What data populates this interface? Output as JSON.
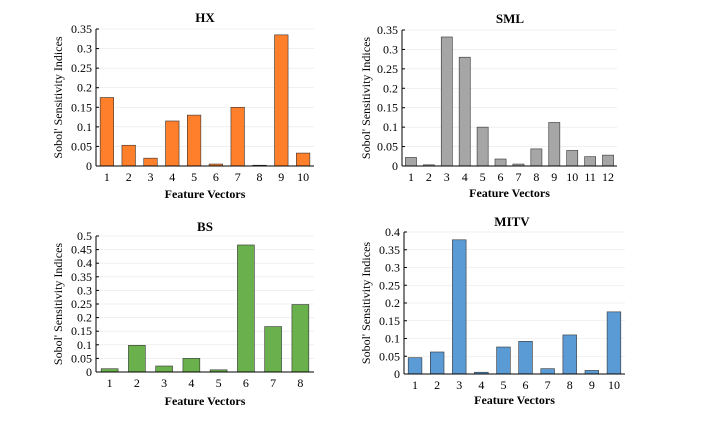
{
  "chart_data": [
    {
      "type": "bar",
      "title": "HX",
      "xlabel": "Feature Vectors",
      "ylabel": "Sobol' Sensitivity Indices",
      "color": "#ff7f2a",
      "categories": [
        "1",
        "2",
        "3",
        "4",
        "5",
        "6",
        "7",
        "8",
        "9",
        "10"
      ],
      "values": [
        0.175,
        0.053,
        0.02,
        0.115,
        0.13,
        0.005,
        0.15,
        0.002,
        0.335,
        0.033
      ],
      "ylim": [
        0,
        0.35
      ],
      "yticks": [
        0,
        0.05,
        0.1,
        0.15,
        0.2,
        0.25,
        0.3,
        0.35
      ],
      "ytick_labels": [
        "0",
        "0.05",
        "0.1",
        "0.15",
        "0.2",
        "0.25",
        "0.3",
        "0.35"
      ]
    },
    {
      "type": "bar",
      "title": "SML",
      "xlabel": "Feature Vectors",
      "ylabel": "Sobol' Sensitivity Indices",
      "color": "#a6a6a6",
      "categories": [
        "1",
        "2",
        "3",
        "4",
        "5",
        "6",
        "7",
        "8",
        "9",
        "10",
        "11",
        "12"
      ],
      "values": [
        0.022,
        0.003,
        0.332,
        0.28,
        0.1,
        0.018,
        0.005,
        0.044,
        0.112,
        0.04,
        0.024,
        0.028
      ],
      "ylim": [
        0,
        0.35
      ],
      "yticks": [
        0,
        0.05,
        0.1,
        0.15,
        0.2,
        0.25,
        0.3,
        0.35
      ],
      "ytick_labels": [
        "0",
        "0.05",
        "0.1",
        "0.15",
        "0.2",
        "0.25",
        "0.3",
        "0.35"
      ]
    },
    {
      "type": "bar",
      "title": "BS",
      "xlabel": "Feature Vectors",
      "ylabel": "Sobol' Sensitivity Indices",
      "color": "#6ab04c",
      "categories": [
        "1",
        "2",
        "3",
        "4",
        "5",
        "6",
        "7",
        "8"
      ],
      "values": [
        0.012,
        0.098,
        0.022,
        0.05,
        0.008,
        0.467,
        0.167,
        0.248
      ],
      "ylim": [
        0,
        0.5
      ],
      "yticks": [
        0,
        0.05,
        0.1,
        0.15,
        0.2,
        0.25,
        0.3,
        0.35,
        0.4,
        0.45,
        0.5
      ],
      "ytick_labels": [
        "0",
        "0.05",
        "0.1",
        "0.15",
        "0.2",
        "0.25",
        "0.3",
        "0.35",
        "0.4",
        "0.45",
        "0.5"
      ]
    },
    {
      "type": "bar",
      "title": "MITV",
      "xlabel": "Feature Vectors",
      "ylabel": "Sobol' Sensitivity Indices",
      "color": "#5b9bd5",
      "categories": [
        "1",
        "2",
        "3",
        "4",
        "5",
        "6",
        "7",
        "8",
        "9",
        "10"
      ],
      "values": [
        0.046,
        0.062,
        0.378,
        0.005,
        0.076,
        0.092,
        0.015,
        0.11,
        0.01,
        0.175
      ],
      "ylim": [
        0,
        0.4
      ],
      "yticks": [
        0,
        0.05,
        0.1,
        0.15,
        0.2,
        0.25,
        0.3,
        0.35,
        0.4
      ],
      "ytick_labels": [
        "0",
        "0.05",
        "0.1",
        "0.15",
        "0.2",
        "0.25",
        "0.3",
        "0.35",
        "0.4"
      ]
    }
  ]
}
